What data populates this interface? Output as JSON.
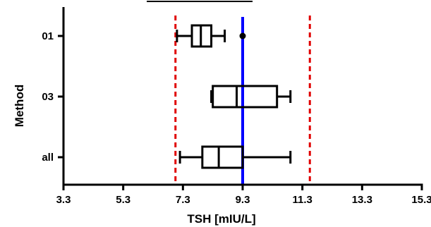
{
  "chart_data": {
    "type": "boxplot",
    "orientation": "horizontal",
    "title": "",
    "xlabel": "TSH [mIU/L]",
    "ylabel": "Method",
    "xlim": [
      3.3,
      15.3
    ],
    "xticks": [
      3.3,
      5.3,
      7.3,
      9.3,
      11.3,
      13.3,
      15.3
    ],
    "xtick_labels": [
      "3.3",
      "5.3",
      "7.3",
      "9.3",
      "11.3",
      "13.3",
      "15.3"
    ],
    "categories": [
      "01",
      "03",
      "all"
    ],
    "boxes": [
      {
        "category": "01",
        "whisker_low": 7.1,
        "q1": 7.6,
        "median": 7.9,
        "q3": 8.25,
        "whisker_high": 8.7,
        "outliers": [
          9.3
        ]
      },
      {
        "category": "03",
        "whisker_low": 8.25,
        "q1": 8.3,
        "median": 9.1,
        "q3": 10.45,
        "whisker_high": 10.9,
        "outliers": []
      },
      {
        "category": "all",
        "whisker_low": 7.2,
        "q1": 7.95,
        "median": 8.5,
        "q3": 9.3,
        "whisker_high": 10.9,
        "outliers": []
      }
    ],
    "reference_lines": [
      {
        "value": 9.3,
        "style": "solid",
        "color": "#0000ff"
      },
      {
        "value": 7.05,
        "style": "dashed",
        "color": "#e00000"
      },
      {
        "value": 11.55,
        "style": "dashed",
        "color": "#e00000"
      }
    ],
    "grid": false,
    "legend": "none"
  }
}
